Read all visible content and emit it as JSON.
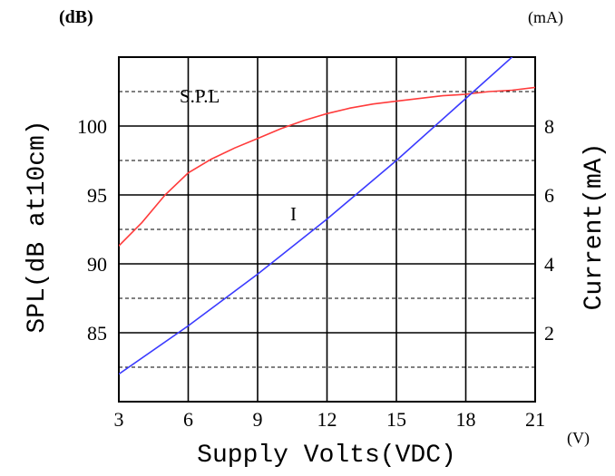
{
  "chart_data": {
    "type": "line",
    "xlabel": "Supply Volts(VDC)",
    "x_unit": "(V)",
    "ylabel_left": "SPL(dB at10cm)",
    "y_unit_left": "(dB)",
    "ylabel_right": "Current(mA)",
    "y_unit_right": "(mA)",
    "xlim": [
      3,
      21
    ],
    "x_ticks": [
      3,
      6,
      9,
      12,
      15,
      18,
      21
    ],
    "ylim_left": [
      80,
      105
    ],
    "y_ticks_left": [
      85,
      90,
      95,
      100
    ],
    "ylim_right": [
      0,
      10
    ],
    "y_ticks_right": [
      2,
      4,
      6,
      8
    ],
    "grid": true,
    "series": [
      {
        "name": "S.P.L",
        "axis": "left",
        "color": "#ff3b3b",
        "x": [
          3,
          4,
          5,
          6,
          7,
          8,
          9,
          10,
          11,
          12,
          13,
          14,
          15,
          16,
          17,
          18,
          19,
          20,
          21
        ],
        "y": [
          91.3,
          93.0,
          95.0,
          96.6,
          97.6,
          98.4,
          99.1,
          99.8,
          100.4,
          100.9,
          101.3,
          101.6,
          101.8,
          102.0,
          102.2,
          102.3,
          102.5,
          102.6,
          102.8
        ]
      },
      {
        "name": "I",
        "axis": "right",
        "color": "#3b3bff",
        "x": [
          3,
          6,
          9,
          12,
          15,
          18,
          21
        ],
        "y": [
          0.8,
          2.2,
          3.7,
          5.3,
          7.0,
          8.8,
          10.6
        ]
      }
    ]
  }
}
